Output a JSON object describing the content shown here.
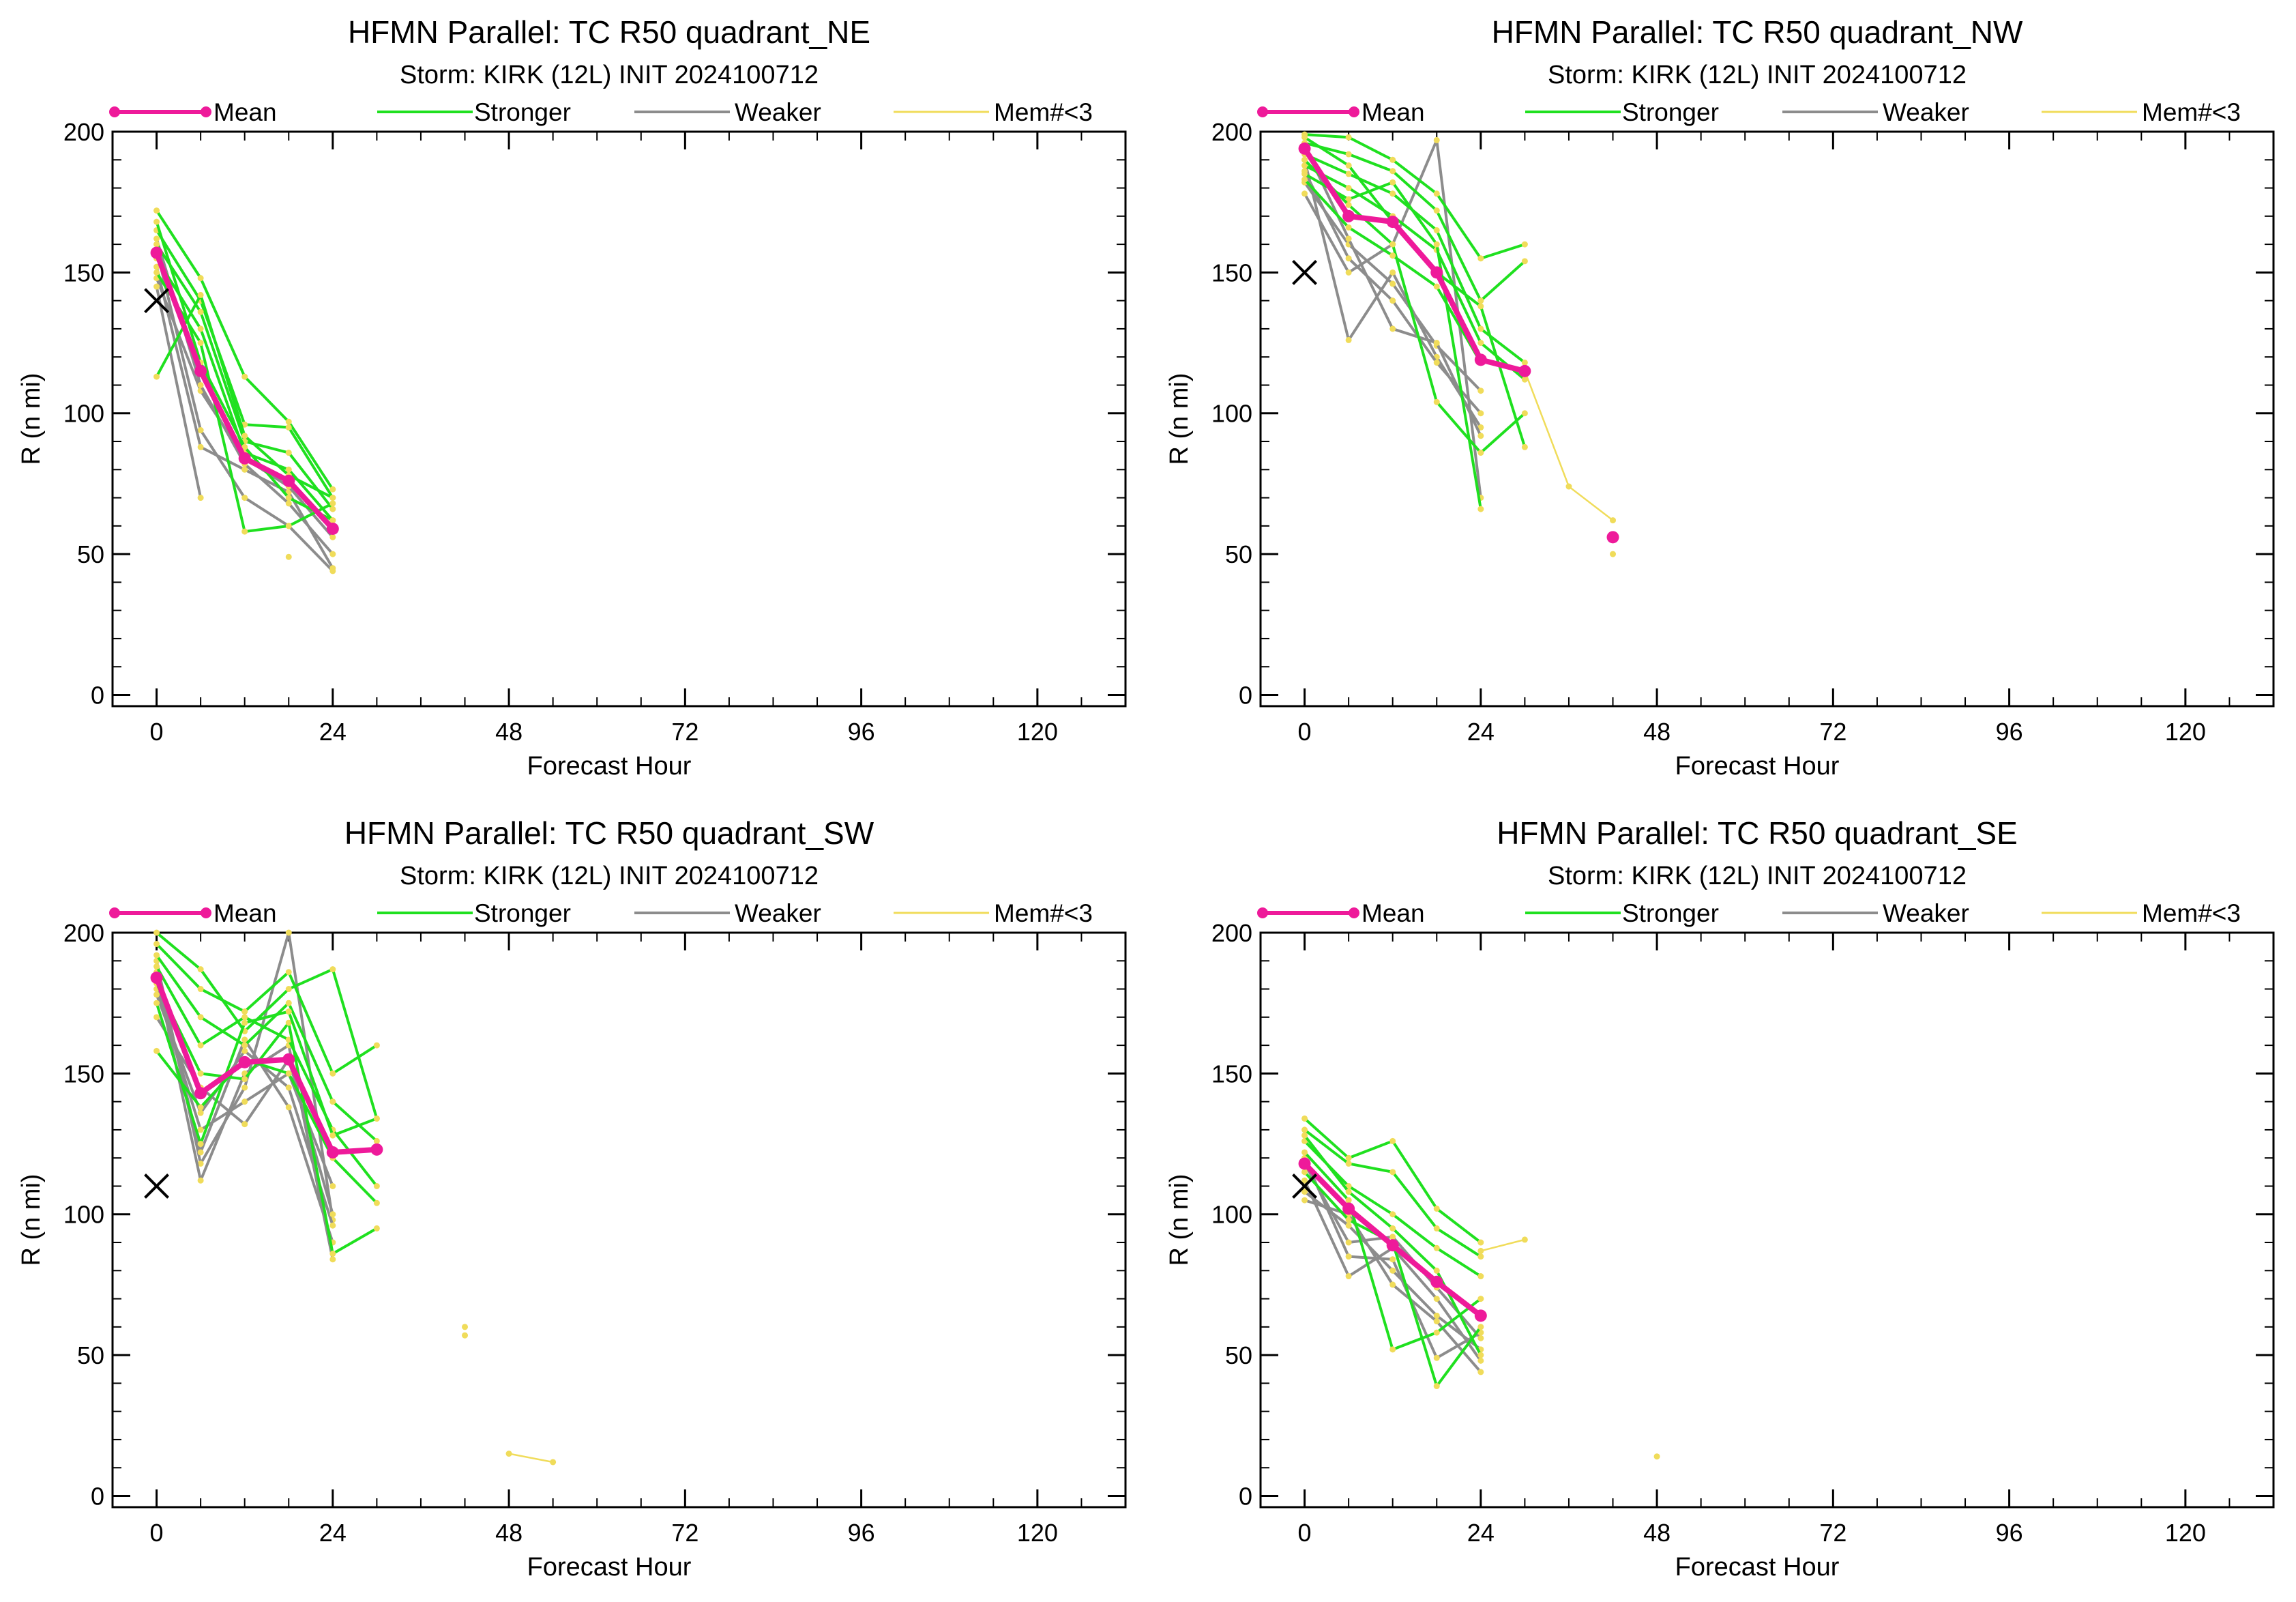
{
  "colors": {
    "mean": "#ee1a9a",
    "stronger": "#1fe01f",
    "weaker": "#8c8c8c",
    "few_members": "#f0dc5a",
    "obs_marker": "#000000"
  },
  "legend": {
    "mean": "Mean",
    "stronger": "Stronger",
    "weaker": "Weaker",
    "few_members": "Mem#<3"
  },
  "chart_data": [
    {
      "type": "line",
      "title": "HFMN Parallel: TC  R50 quadrant_NE",
      "subtitle": "Storm: KIRK (12L) INIT 2024100712",
      "xlabel": "Forecast Hour",
      "ylabel": "R (n mi)",
      "xlim": [
        -6,
        132
      ],
      "ylim": [
        -4,
        200
      ],
      "xticks": [
        0,
        24,
        48,
        72,
        96,
        120
      ],
      "yticks": [
        0,
        50,
        100,
        150,
        200
      ],
      "observed": {
        "x": 0,
        "y": 140
      },
      "mean": {
        "x": [
          0,
          6,
          12,
          18,
          24
        ],
        "y": [
          157,
          115,
          84,
          76,
          59
        ]
      },
      "stronger": [
        {
          "x": [
            0,
            6,
            12,
            18,
            24
          ],
          "y": [
            172,
            148,
            113,
            97,
            73
          ]
        },
        {
          "x": [
            0,
            6,
            12,
            18,
            24
          ],
          "y": [
            165,
            140,
            96,
            95,
            70
          ]
        },
        {
          "x": [
            0,
            6,
            12,
            18,
            24
          ],
          "y": [
            160,
            136,
            90,
            86,
            66
          ]
        },
        {
          "x": [
            0,
            6,
            12,
            18,
            24
          ],
          "y": [
            155,
            130,
            86,
            80,
            62
          ]
        },
        {
          "x": [
            0,
            6,
            12,
            18,
            24
          ],
          "y": [
            150,
            125,
            58,
            60,
            68
          ]
        },
        {
          "x": [
            0,
            6,
            12,
            18,
            24
          ],
          "y": [
            113,
            142,
            92,
            78,
            70
          ]
        },
        {
          "x": [
            0,
            6,
            12,
            18,
            24
          ],
          "y": [
            168,
            118,
            88,
            70,
            62
          ]
        }
      ],
      "weaker": [
        {
          "x": [
            0,
            6,
            12,
            18,
            24
          ],
          "y": [
            158,
            94,
            70,
            60,
            44
          ]
        },
        {
          "x": [
            0,
            6,
            12,
            18,
            24
          ],
          "y": [
            152,
            88,
            80,
            72,
            45
          ]
        },
        {
          "x": [
            0,
            6,
            12,
            18,
            24
          ],
          "y": [
            148,
            108,
            84,
            74,
            56
          ]
        },
        {
          "x": [
            0,
            6,
            12,
            18,
            24
          ],
          "y": [
            162,
            110,
            82,
            68,
            50
          ]
        },
        {
          "x": [
            0,
            6
          ],
          "y": [
            145,
            70
          ]
        }
      ],
      "few_members": [
        {
          "x": [
            18
          ],
          "y": [
            49
          ]
        }
      ]
    },
    {
      "type": "line",
      "title": "HFMN Parallel: TC  R50 quadrant_NW",
      "subtitle": "Storm: KIRK (12L) INIT 2024100712",
      "xlabel": "Forecast Hour",
      "ylabel": "R (n mi)",
      "xlim": [
        -6,
        132
      ],
      "ylim": [
        -4,
        200
      ],
      "xticks": [
        0,
        24,
        48,
        72,
        96,
        120
      ],
      "yticks": [
        0,
        50,
        100,
        150,
        200
      ],
      "observed": {
        "x": 0,
        "y": 150
      },
      "mean": {
        "x": [
          0,
          6,
          12,
          18,
          24,
          30
        ],
        "y": [
          194,
          170,
          168,
          150,
          119,
          115
        ]
      },
      "stronger": [
        {
          "x": [
            0,
            6,
            12,
            18,
            24,
            30
          ],
          "y": [
            199,
            198,
            190,
            178,
            155,
            160
          ]
        },
        {
          "x": [
            0,
            6,
            12,
            18,
            24,
            30
          ],
          "y": [
            196,
            192,
            186,
            172,
            140,
            154
          ]
        },
        {
          "x": [
            0,
            6,
            12,
            18,
            24,
            30
          ],
          "y": [
            192,
            185,
            178,
            165,
            130,
            118
          ]
        },
        {
          "x": [
            0,
            6,
            12,
            18,
            24,
            30
          ],
          "y": [
            188,
            180,
            170,
            158,
            125,
            112
          ]
        },
        {
          "x": [
            0,
            6,
            12,
            18,
            24
          ],
          "y": [
            185,
            176,
            182,
            160,
            66
          ]
        },
        {
          "x": [
            0,
            6,
            12,
            18,
            24,
            30
          ],
          "y": [
            190,
            174,
            160,
            104,
            86,
            100
          ]
        },
        {
          "x": [
            0,
            6,
            12,
            18,
            24,
            30
          ],
          "y": [
            198,
            188,
            168,
            150,
            138,
            88
          ]
        },
        {
          "x": [
            0,
            6,
            12,
            18,
            24
          ],
          "y": [
            183,
            166,
            156,
            145,
            118
          ]
        }
      ],
      "weaker": [
        {
          "x": [
            0,
            6,
            12,
            18,
            24
          ],
          "y": [
            190,
            126,
            150,
            120,
            95
          ]
        },
        {
          "x": [
            0,
            6,
            12,
            18,
            24
          ],
          "y": [
            186,
            155,
            140,
            118,
            100
          ]
        },
        {
          "x": [
            0,
            6,
            12,
            18,
            24
          ],
          "y": [
            182,
            160,
            146,
            124,
            108
          ]
        },
        {
          "x": [
            0,
            6,
            12,
            18,
            24
          ],
          "y": [
            178,
            150,
            160,
            197,
            70
          ]
        },
        {
          "x": [
            0,
            6,
            12,
            18,
            24
          ],
          "y": [
            195,
            162,
            130,
            125,
            92
          ]
        }
      ],
      "few_members": [
        {
          "x": [
            30,
            36,
            42
          ],
          "y": [
            115,
            74,
            62
          ]
        },
        {
          "x": [
            42
          ],
          "y": [
            50
          ]
        }
      ],
      "mean_isolated": {
        "x": 42,
        "y": 56
      }
    },
    {
      "type": "line",
      "title": "HFMN Parallel: TC  R50 quadrant_SW",
      "subtitle": "Storm: KIRK (12L) INIT 2024100712",
      "xlabel": "Forecast Hour",
      "ylabel": "R (n mi)",
      "xlim": [
        -6,
        132
      ],
      "ylim": [
        -4,
        200
      ],
      "xticks": [
        0,
        24,
        48,
        72,
        96,
        120
      ],
      "yticks": [
        0,
        50,
        100,
        150,
        200
      ],
      "observed": {
        "x": 0,
        "y": 110
      },
      "mean": {
        "x": [
          0,
          6,
          12,
          18,
          24,
          30
        ],
        "y": [
          184,
          143,
          154,
          155,
          122,
          123
        ]
      },
      "stronger": [
        {
          "x": [
            0,
            6,
            12,
            18,
            24,
            30
          ],
          "y": [
            200,
            187,
            165,
            180,
            187,
            134
          ]
        },
        {
          "x": [
            0,
            6,
            12,
            18,
            24,
            30
          ],
          "y": [
            196,
            180,
            172,
            186,
            150,
            160
          ]
        },
        {
          "x": [
            0,
            6,
            12,
            18,
            24,
            30
          ],
          "y": [
            192,
            170,
            160,
            175,
            140,
            126
          ]
        },
        {
          "x": [
            0,
            6,
            12,
            18,
            24,
            30
          ],
          "y": [
            188,
            160,
            170,
            162,
            130,
            110
          ]
        },
        {
          "x": [
            0,
            6,
            12,
            18,
            24,
            30
          ],
          "y": [
            182,
            150,
            148,
            168,
            86,
            95
          ]
        },
        {
          "x": [
            0,
            6,
            12,
            18,
            24,
            30
          ],
          "y": [
            158,
            138,
            155,
            150,
            120,
            104
          ]
        },
        {
          "x": [
            0,
            6,
            12,
            18,
            24,
            30
          ],
          "y": [
            175,
            125,
            168,
            172,
            128,
            134
          ]
        }
      ],
      "weaker": [
        {
          "x": [
            0,
            6,
            12,
            18,
            24
          ],
          "y": [
            190,
            118,
            145,
            200,
            98
          ]
        },
        {
          "x": [
            0,
            6,
            12,
            18,
            24
          ],
          "y": [
            185,
            112,
            150,
            160,
            84
          ]
        },
        {
          "x": [
            0,
            6,
            12,
            18,
            24
          ],
          "y": [
            180,
            130,
            140,
            150,
            110
          ]
        },
        {
          "x": [
            0,
            6,
            12,
            18,
            24
          ],
          "y": [
            178,
            136,
            158,
            145,
            96
          ]
        },
        {
          "x": [
            0,
            6,
            12,
            18,
            24
          ],
          "y": [
            170,
            145,
            132,
            155,
            100
          ]
        },
        {
          "x": [
            0,
            6,
            12,
            18,
            24
          ],
          "y": [
            186,
            122,
            162,
            138,
            90
          ]
        }
      ],
      "few_members": [
        {
          "x": [
            42
          ],
          "y": [
            60
          ]
        },
        {
          "x": [
            42
          ],
          "y": [
            57
          ]
        },
        {
          "x": [
            48,
            54
          ],
          "y": [
            15,
            12
          ]
        }
      ]
    },
    {
      "type": "line",
      "title": "HFMN Parallel: TC  R50 quadrant_SE",
      "subtitle": "Storm: KIRK (12L) INIT 2024100712",
      "xlabel": "Forecast Hour",
      "ylabel": "R (n mi)",
      "xlim": [
        -6,
        132
      ],
      "ylim": [
        -4,
        200
      ],
      "xticks": [
        0,
        24,
        48,
        72,
        96,
        120
      ],
      "yticks": [
        0,
        50,
        100,
        150,
        200
      ],
      "observed": {
        "x": 0,
        "y": 110
      },
      "mean": {
        "x": [
          0,
          6,
          12,
          18,
          24
        ],
        "y": [
          118,
          102,
          89,
          76,
          64
        ]
      },
      "stronger": [
        {
          "x": [
            0,
            6,
            12,
            18,
            24
          ],
          "y": [
            134,
            120,
            126,
            102,
            90
          ]
        },
        {
          "x": [
            0,
            6,
            12,
            18,
            24
          ],
          "y": [
            130,
            118,
            115,
            95,
            85
          ]
        },
        {
          "x": [
            0,
            6,
            12,
            18,
            24
          ],
          "y": [
            126,
            110,
            100,
            88,
            78
          ]
        },
        {
          "x": [
            0,
            6,
            12,
            18,
            24
          ],
          "y": [
            122,
            105,
            52,
            58,
            70
          ]
        },
        {
          "x": [
            0,
            6,
            12,
            18,
            24
          ],
          "y": [
            115,
            98,
            90,
            39,
            60
          ]
        },
        {
          "x": [
            0,
            6,
            12,
            18,
            24
          ],
          "y": [
            128,
            108,
            95,
            80,
            50
          ]
        }
      ],
      "weaker": [
        {
          "x": [
            0,
            6,
            12,
            18,
            24
          ],
          "y": [
            112,
            78,
            88,
            70,
            48
          ]
        },
        {
          "x": [
            0,
            6,
            12,
            18,
            24
          ],
          "y": [
            108,
            96,
            80,
            64,
            52
          ]
        },
        {
          "x": [
            0,
            6,
            12,
            18,
            24
          ],
          "y": [
            118,
            90,
            92,
            74,
            56
          ]
        },
        {
          "x": [
            0,
            6,
            12,
            18,
            24
          ],
          "y": [
            105,
            100,
            75,
            62,
            44
          ]
        },
        {
          "x": [
            0,
            6,
            12,
            18,
            24
          ],
          "y": [
            120,
            85,
            84,
            49,
            58
          ]
        }
      ],
      "few_members": [
        {
          "x": [
            24,
            30
          ],
          "y": [
            87,
            91
          ]
        },
        {
          "x": [
            48
          ],
          "y": [
            14
          ]
        }
      ]
    }
  ]
}
